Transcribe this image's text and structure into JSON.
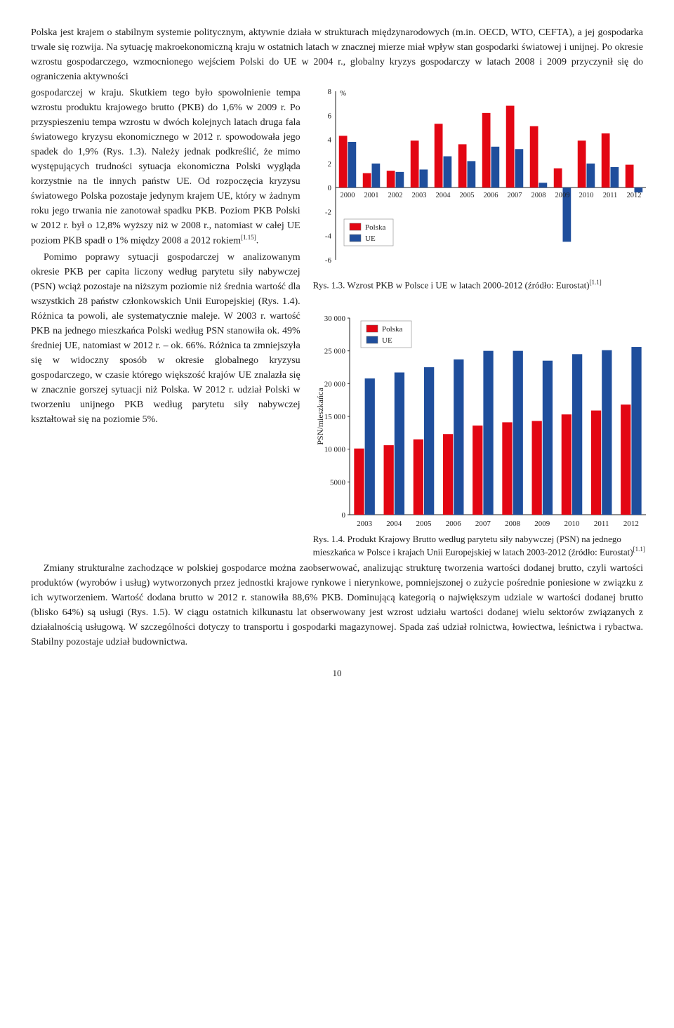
{
  "topParagraph": "Polska jest krajem o stabilnym systemie politycznym, aktywnie działa w strukturach międzynarodowych (m.in. OECD, WTO, CEFTA), a jej gospodarka trwale się rozwija. Na sytuację makroekonomiczną kraju w ostatnich latach w znacznej mierze miał wpływ stan gospodarki światowej i unijnej. Po okresie wzrostu gospodarczego, wzmocnionego wejściem Polski do UE w 2004 r., globalny kryzys gospodarczy w latach 2008 i 2009 przyczynił się do ograniczenia aktywności",
  "leftParagraph1": "gospodarczej w kraju. Skutkiem tego było spowolnienie tempa wzrostu produktu krajowego brutto (PKB) do 1,6% w 2009 r. Po przyspieszeniu tempa wzrostu w dwóch kolejnych latach druga fala światowego kryzysu ekonomicznego w 2012 r. spowodowała jego spadek do 1,9% (Rys. 1.3). Należy jednak podkreślić, że mimo występujących trudności sytuacja ekonomiczna Polski wygląda korzystnie na tle innych państw UE. Od rozpoczęcia kryzysu światowego Polska pozostaje jedynym krajem UE, który w żadnym roku jego trwania nie zanotował spadku PKB. Poziom PKB Polski w 2012 r. był o 12,8% wyższy niż w 2008 r., natomiast w całej UE poziom PKB spadł o 1% między 2008 a 2012 rokiem[1.15].",
  "leftParagraph2": "Pomimo poprawy sytuacji gospodarczej w analizowanym okresie PKB per capita liczony według parytetu siły nabywczej (PSN) wciąż pozostaje na niższym poziomie niż średnia wartość dla wszystkich 28 państw członkowskich Unii Europejskiej (Rys. 1.4). Różnica ta powoli, ale systematycznie maleje. W 2003 r. wartość PKB na jednego mieszkańca Polski według PSN stanowiła ok. 49% średniej UE, natomiast w 2012 r. – ok. 66%. Różnica ta zmniejszyła się w widoczny sposób w okresie globalnego kryzysu gospodarczego, w czasie którego większość krajów UE znalazła się w znacznie gorszej sytuacji niż Polska. W 2012 r. udział Polski w tworzeniu unijnego PKB według parytetu siły nabywczej kształtował się na poziomie 5%.",
  "bottomParagraph": "Zmiany strukturalne zachodzące w polskiej gospodarce można zaobserwować, analizując strukturę tworzenia wartości dodanej brutto, czyli wartości produktów (wyrobów i usług) wytworzonych przez jednostki krajowe rynkowe i nierynkowe, pomniejszonej o zużycie pośrednie poniesione w związku z ich wytworzeniem. Wartość dodana brutto w 2012 r. stanowiła 88,6% PKB. Dominującą kategorią o największym udziale w wartości dodanej brutto (blisko 64%) są usługi (Rys. 1.5). W ciągu ostatnich kilkunastu lat obserwowany jest wzrost udziału wartości dodanej wielu sektorów związanych z działalnością usługową. W szczególności dotyczy to transportu i gospodarki magazynowej. Spada zaś udział rolnictwa, łowiectwa, leśnictwa i rybactwa. Stabilny pozostaje udział budownictwa.",
  "chart1": {
    "type": "bar",
    "yAxisLabel": "%",
    "ylim": [
      -6,
      8
    ],
    "yticks": [
      -6,
      -4,
      -2,
      0,
      2,
      4,
      6,
      8
    ],
    "years": [
      "2000",
      "2001",
      "2002",
      "2003",
      "2004",
      "2005",
      "2006",
      "2007",
      "2008",
      "2009",
      "2010",
      "2011",
      "2012"
    ],
    "series": [
      {
        "name": "Polska",
        "color": "#e30613",
        "values": [
          4.3,
          1.2,
          1.4,
          3.9,
          5.3,
          3.6,
          6.2,
          6.8,
          5.1,
          1.6,
          3.9,
          4.5,
          1.9
        ]
      },
      {
        "name": "UE",
        "color": "#1f4e9c",
        "values": [
          3.8,
          2.0,
          1.3,
          1.5,
          2.6,
          2.2,
          3.4,
          3.2,
          0.4,
          -4.5,
          2.0,
          1.7,
          -0.4
        ]
      }
    ],
    "legend": {
      "items": [
        "Polska",
        "UE"
      ]
    },
    "caption": "Rys. 1.3. Wzrost PKB w Polsce i UE w latach 2000-2012 (źródło: Eurostat)[1.1]"
  },
  "chart2": {
    "type": "bar",
    "yAxisLabel": "PSN/mieszkańca",
    "ylim": [
      0,
      30000
    ],
    "yticks": [
      0,
      5000,
      10000,
      15000,
      20000,
      25000,
      30000
    ],
    "years": [
      "2003",
      "2004",
      "2005",
      "2006",
      "2007",
      "2008",
      "2009",
      "2010",
      "2011",
      "2012"
    ],
    "series": [
      {
        "name": "Polska",
        "color": "#e30613",
        "values": [
          10100,
          10600,
          11500,
          12300,
          13600,
          14100,
          14300,
          15300,
          15900,
          16800
        ]
      },
      {
        "name": "UE",
        "color": "#1f4e9c",
        "values": [
          20800,
          21700,
          22500,
          23700,
          25000,
          25000,
          23500,
          24500,
          25100,
          25600
        ]
      }
    ],
    "legend": {
      "items": [
        "Polska",
        "UE"
      ]
    },
    "caption": "Rys. 1.4. Produkt Krajowy Brutto według parytetu siły nabywczej (PSN) na jednego mieszkańca w Polsce i krajach Unii Europejskiej w latach 2003-2012 (źródło: Eurostat)[1.1]"
  },
  "pageNumber": "10",
  "bg": "#ffffff",
  "axisColor": "#222222"
}
